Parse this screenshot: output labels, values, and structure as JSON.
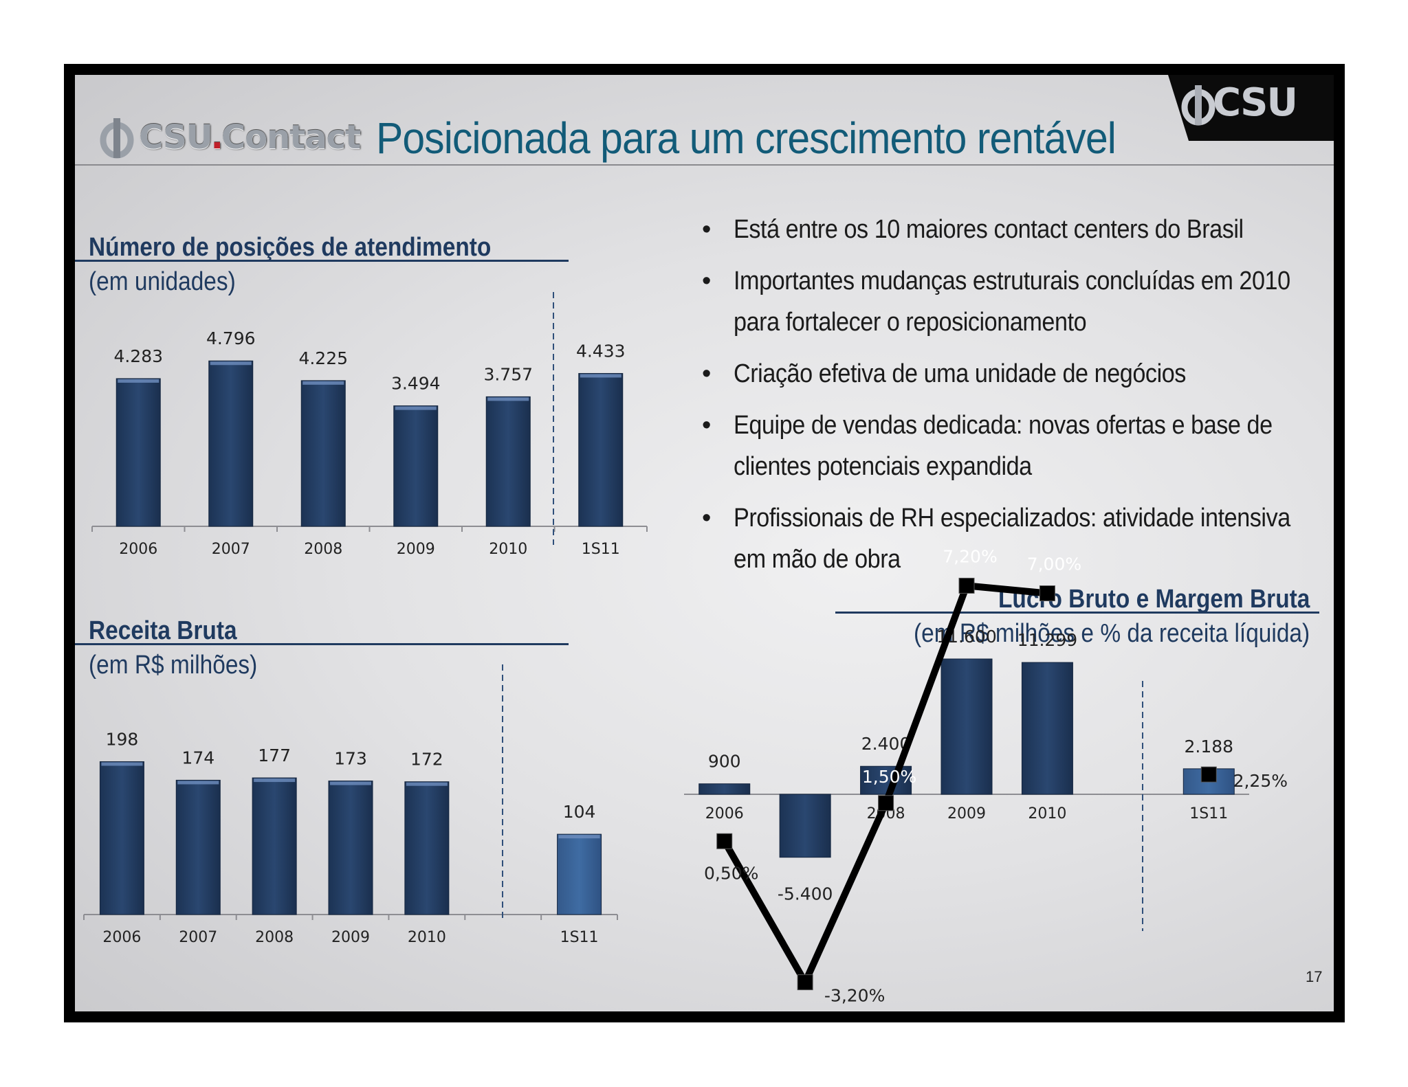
{
  "header": {
    "title": "Posicionada para um crescimento rentável",
    "logo_left_text": "CSU",
    "logo_left_dot": ".",
    "logo_left_suffix": "Contact",
    "logo_right_text": "CSU"
  },
  "bullets": [
    "Está entre os 10 maiores contact centers do Brasil",
    "Importantes mudanças estruturais concluídas em 2010 para fortalecer o reposicionamento",
    "Criação efetiva de uma unidade de negócios",
    "Equipe de vendas dedicada: novas ofertas e base de clientes potenciais expandida",
    "Profissionais de RH especializados: atividade intensiva em mão de obra"
  ],
  "bullet_glyph": "•",
  "page_number": "17",
  "colors": {
    "bar_dark": "#2a4770",
    "bar_light": "#3f6ca3",
    "title_blue": "#125b78",
    "section_blue": "#1f3a5f",
    "divider_blue": "#2f4f7a",
    "line_black": "#000000"
  },
  "chart_data": [
    {
      "type": "bar",
      "title": "Número de posições de atendimento",
      "subtitle": "(em unidades)",
      "categories": [
        "2006",
        "2007",
        "2008",
        "2009",
        "2010",
        "1S11"
      ],
      "values": [
        4283,
        4796,
        4225,
        3494,
        3757,
        4433
      ],
      "labels": [
        "4.283",
        "4.796",
        "4.225",
        "3.494",
        "3.757",
        "4.433"
      ],
      "ylim": [
        0,
        5000
      ]
    },
    {
      "type": "bar",
      "title": "Receita Bruta",
      "subtitle": "(em R$ milhões)",
      "categories": [
        "2006",
        "2007",
        "2008",
        "2009",
        "2010",
        "",
        "1S11"
      ],
      "values": [
        198,
        174,
        177,
        173,
        172,
        null,
        104
      ],
      "labels": [
        "198",
        "174",
        "177",
        "173",
        "172",
        "",
        "104"
      ],
      "ylim": [
        0,
        210
      ]
    },
    {
      "type": "bar",
      "title": "Lucro Bruto e Margem Bruta",
      "subtitle": "(em R$ milhões e % da receita líquida)",
      "categories": [
        "2006",
        "2007",
        "2008",
        "2009",
        "2010",
        "",
        "1S11"
      ],
      "series": [
        {
          "values": [
            900,
            -5400,
            2400,
            11600,
            11299,
            null,
            2188
          ],
          "labels": [
            "900",
            "-5.400",
            "2.400",
            "11.600",
            "11.299",
            "",
            "2.188"
          ]
        },
        {
          "values": [
            0.5,
            -3.2,
            1.5,
            7.2,
            7.0,
            null,
            2.25
          ],
          "labels": [
            "0,50%",
            "-3,20%",
            "1,50%",
            "7,20%",
            "7,00%",
            "",
            "2,25%"
          ]
        }
      ]
    }
  ]
}
